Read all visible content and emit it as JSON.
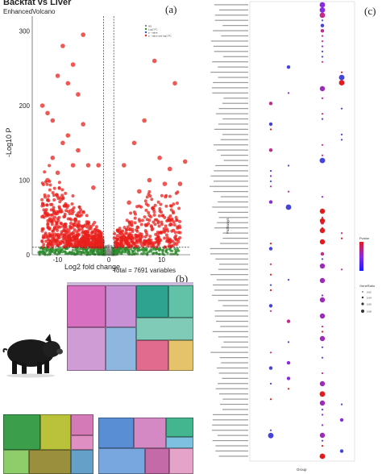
{
  "panel_a": {
    "title": "Backfat vs Liver",
    "subtitle": "EnhancedVolcano",
    "letter": "(a)",
    "xlabel": "Log2 fold change",
    "ylabel": "-Log10 P",
    "total": "Total = 7691 variables",
    "legend": [
      "NS",
      "Log2 FC",
      "p - value",
      "p - value and log2 FC"
    ],
    "colors": {
      "ns": "#8a8a8a",
      "fc": "#2e8b2e",
      "sig": "#e8201c",
      "bg": "#ffffff"
    }
  },
  "panel_b": {
    "letter": "(b)"
  },
  "panel_c": {
    "letter": "(c)",
    "ylabel": "Pathways",
    "xlabel": "Group",
    "legend_pvalue_title": "Pvalue",
    "legend_gene_title": "GeneRatio",
    "gene_ratio_ticks": [
      "0.02",
      "0.04",
      "0.06",
      "0.08"
    ]
  },
  "chart_data": {
    "type": "scatter",
    "title": "Backfat vs Liver",
    "subtitle": "EnhancedVolcano",
    "xlabel": "Log2 fold change",
    "ylabel": "-Log10 P",
    "xlim": [
      -15,
      16
    ],
    "ylim": [
      0,
      320
    ],
    "x_ticks": [
      -10,
      0,
      10
    ],
    "y_ticks": [
      0,
      100,
      200,
      300
    ],
    "fc_cutoff": [
      -1,
      1
    ],
    "p_cutoff": 10,
    "total_points": 7691,
    "highlight_points": [
      {
        "x": -13,
        "y": 200
      },
      {
        "x": -11,
        "y": 180
      },
      {
        "x": -9,
        "y": 280
      },
      {
        "x": -7,
        "y": 255
      },
      {
        "x": -5,
        "y": 295
      },
      {
        "x": -8,
        "y": 160
      },
      {
        "x": -6,
        "y": 140
      },
      {
        "x": -4,
        "y": 120
      },
      {
        "x": -12,
        "y": 100
      },
      {
        "x": -10,
        "y": 110
      },
      {
        "x": -3,
        "y": 90
      },
      {
        "x": -2,
        "y": 120
      },
      {
        "x": -10,
        "y": 240
      },
      {
        "x": -5,
        "y": 175
      },
      {
        "x": -8,
        "y": 230
      },
      {
        "x": -11,
        "y": 130
      },
      {
        "x": -9,
        "y": 150
      },
      {
        "x": -6,
        "y": 215
      },
      {
        "x": -12,
        "y": 190
      },
      {
        "x": -7,
        "y": 120
      },
      {
        "x": 3,
        "y": 120
      },
      {
        "x": 5,
        "y": 150
      },
      {
        "x": 7,
        "y": 180
      },
      {
        "x": 8,
        "y": 100
      },
      {
        "x": 10,
        "y": 130
      },
      {
        "x": 12,
        "y": 115
      },
      {
        "x": 14,
        "y": 95
      },
      {
        "x": 15,
        "y": 125
      },
      {
        "x": 9,
        "y": 260
      },
      {
        "x": 11,
        "y": 95
      },
      {
        "x": 6,
        "y": 85
      },
      {
        "x": 4,
        "y": 70
      },
      {
        "x": 13,
        "y": 230
      }
    ]
  }
}
